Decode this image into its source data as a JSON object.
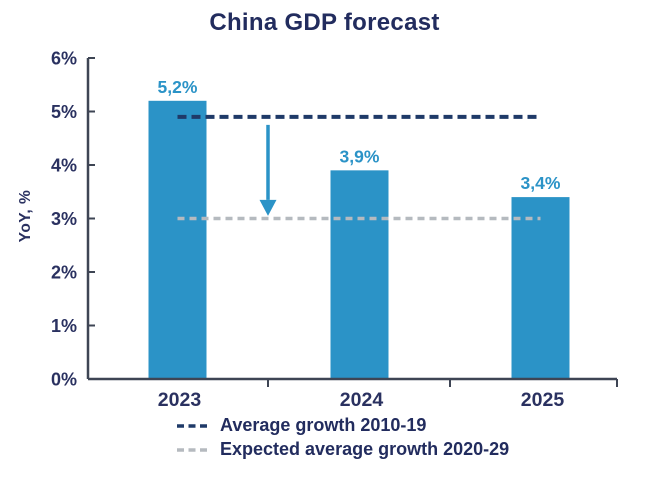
{
  "chart_data": {
    "type": "bar",
    "title": "China GDP forecast",
    "categories": [
      "2023",
      "2024",
      "2025"
    ],
    "values": [
      5.2,
      3.9,
      3.4
    ],
    "value_labels": [
      "5,2%",
      "3,9%",
      "3,4%"
    ],
    "xlabel": "",
    "ylabel": "YoY, %",
    "ylim": [
      0,
      6
    ],
    "ytick_labels": [
      "0%",
      "1%",
      "2%",
      "3%",
      "4%",
      "5%",
      "6%"
    ],
    "grid": false,
    "legend_position": "bottom",
    "bar_color": "#2B93C7",
    "reference_lines": [
      {
        "name": "Average growth 2010-19",
        "value": 4.9,
        "color": "#1F3A68",
        "style": "dashed"
      },
      {
        "name": "Expected average growth 2020-29",
        "value": 3.0,
        "color": "#B5BABF",
        "style": "dashed"
      }
    ],
    "annotations": [
      {
        "type": "arrow",
        "direction": "down",
        "from_value": 4.75,
        "to_value": 3.05,
        "color": "#2B93C7"
      }
    ]
  },
  "colors": {
    "bar": "#2B93C7",
    "title": "#222C5E",
    "axis_text": "#2A3160",
    "axis_line": "#3E4554",
    "avg_line": "#1F3A68",
    "expected_line": "#B5BABF",
    "arrow": "#2B93C7",
    "bg": "#FFFFFF"
  }
}
